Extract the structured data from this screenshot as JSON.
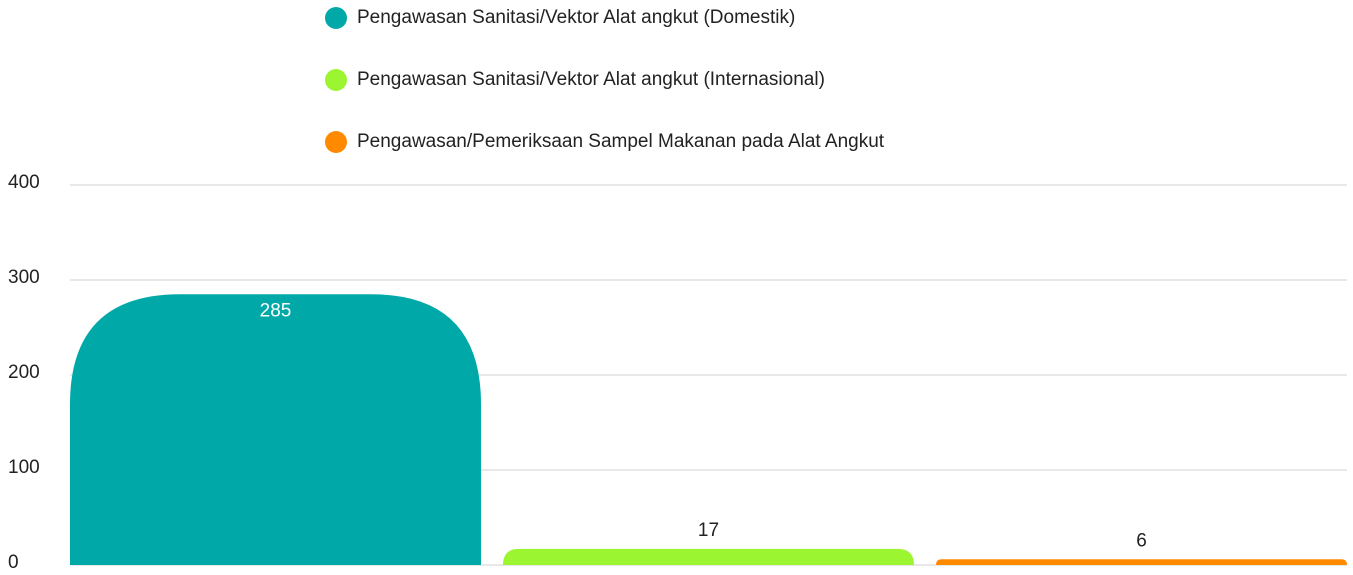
{
  "chart_data": {
    "type": "bar",
    "categories": [
      null
    ],
    "series": [
      {
        "name": "Pengawasan Sanitasi/Vektor Alat angkut (Domestik)",
        "color": "#00a9a8",
        "values": [
          285
        ]
      },
      {
        "name": "Pengawasan Sanitasi/Vektor Alat angkut (Internasional)",
        "color": "#9cf531",
        "values": [
          17
        ]
      },
      {
        "name": "Pengawasan/Pemeriksaan Sampel Makanan pada Alat Angkut",
        "color": "#ff8a00",
        "values": [
          6
        ]
      }
    ],
    "ylim": [
      0,
      400
    ],
    "yticks": [
      0,
      100,
      200,
      300,
      400
    ],
    "grid": true,
    "legend": "top"
  }
}
